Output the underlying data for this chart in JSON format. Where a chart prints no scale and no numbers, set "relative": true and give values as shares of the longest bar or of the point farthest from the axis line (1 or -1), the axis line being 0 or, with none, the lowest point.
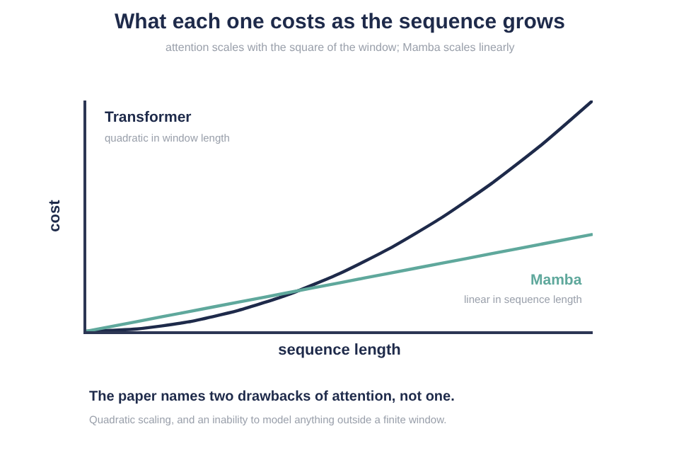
{
  "chart_data": {
    "type": "line",
    "title": "What each one costs as the sequence grows",
    "subtitle": "attention scales with the square of the window; Mamba scales linearly",
    "xlabel": "sequence length",
    "ylabel": "cost",
    "relative": true,
    "legend": false,
    "marker": "none",
    "line_style": "solid",
    "categories": [
      null,
      null,
      null,
      null,
      null,
      null,
      null,
      null,
      null,
      null,
      null
    ],
    "series": [
      {
        "name": "Transformer",
        "color": "#1e2a4a",
        "values": [
          0,
          0.01,
          0.04,
          0.09,
          0.16,
          0.25,
          0.36,
          0.49,
          0.64,
          0.81,
          1
        ]
      },
      {
        "name": "Mamba",
        "color": "#5fa89c",
        "values": [
          0,
          0.042,
          0.084,
          0.126,
          0.168,
          0.21,
          0.252,
          0.294,
          0.336,
          0.378,
          0.42
        ]
      }
    ],
    "annotations": [
      "quadratic in window length",
      "linear in sequence length",
      "The paper names two drawbacks of attention, not one.",
      "Quadratic scaling, and an inability to model anything outside a finite window."
    ]
  }
}
